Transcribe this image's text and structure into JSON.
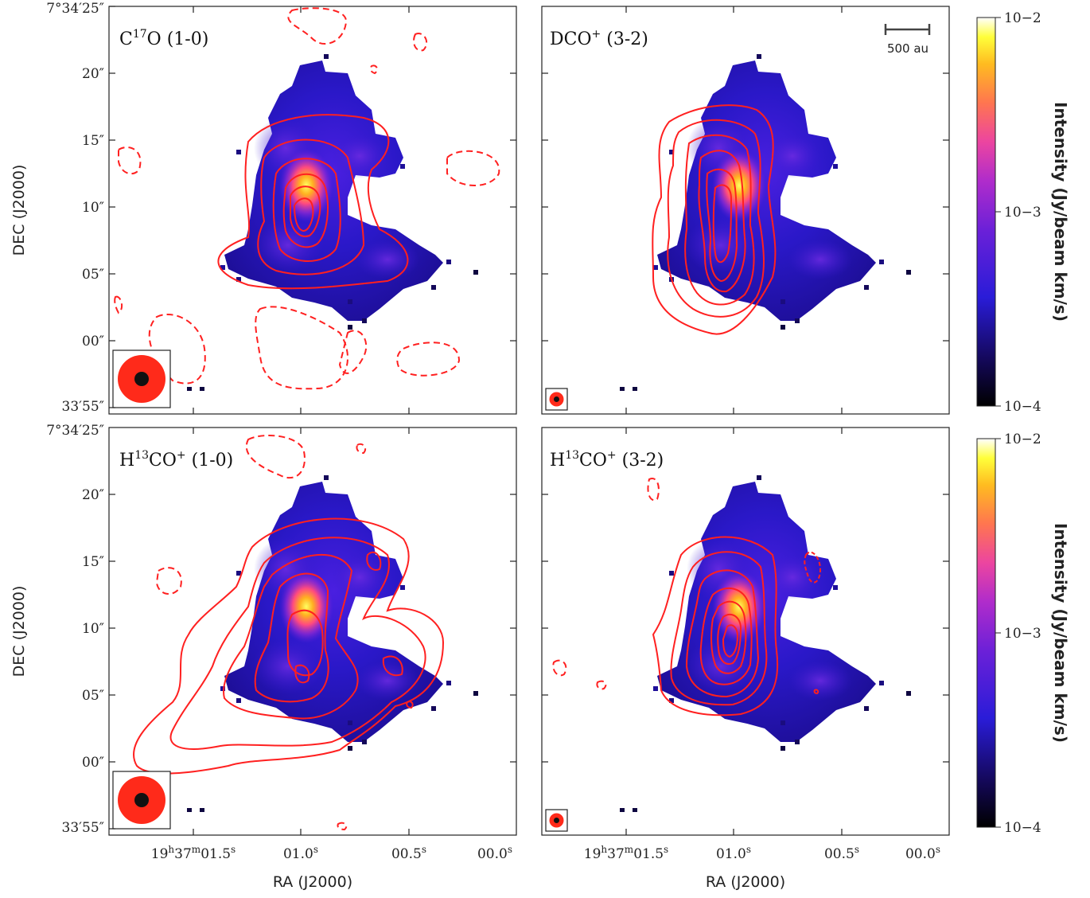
{
  "chart_data": [
    {
      "type": "heatmap",
      "panel": "top-left",
      "title": "C17O (1-0)",
      "title_main": "C",
      "title_sup": "17",
      "title_rest": "O (1-0)",
      "ylabel": "DEC (J2000)",
      "yticks": [
        "7°34′25″",
        "20″",
        "15″",
        "10″",
        "05″",
        "00″",
        "33′55″"
      ],
      "contours": "red solid positive levels, dashed negative levels",
      "beam": "large (red ellipse in lower-left box)"
    },
    {
      "type": "heatmap",
      "panel": "top-right",
      "title": "DCO+ (3-2)",
      "title_main": "DCO",
      "title_sup": "+",
      "title_rest": " (3-2)",
      "scalebar": "500 au",
      "beam": "small"
    },
    {
      "type": "heatmap",
      "panel": "bottom-left",
      "title": "H13CO+ (1-0)",
      "title_main": "H",
      "title_sup": "13",
      "title_mid": "CO",
      "title_sup2": "+",
      "title_rest": " (1-0)",
      "ylabel": "DEC (J2000)",
      "xlabel": "RA (J2000)",
      "yticks": [
        "7°34′25″",
        "20″",
        "15″",
        "10″",
        "05″",
        "00″",
        "33′55″"
      ],
      "xticks": [
        "19h37m01.5s",
        "01.0s",
        "00.5s",
        "00.0s"
      ],
      "beam": "large"
    },
    {
      "type": "heatmap",
      "panel": "bottom-right",
      "title": "H13CO+ (3-2)",
      "title_main": "H",
      "title_sup": "13",
      "title_mid": "CO",
      "title_sup2": "+",
      "title_rest": " (3-2)",
      "xlabel": "RA (J2000)",
      "xticks": [
        "19h37m01.5s",
        "01.0s",
        "00.5s",
        "00.0s"
      ],
      "beam": "small"
    }
  ],
  "colorbar": {
    "label": "Intensity (Jy/beam km/s)",
    "scale": "log",
    "range": [
      0.0001,
      0.01
    ],
    "ticks": [
      "10−2",
      "10−3",
      "10−4"
    ],
    "colormap": [
      "#000000",
      "#1a0a6e",
      "#2b1ad6",
      "#5a1fd8",
      "#a02bd0",
      "#e040a8",
      "#ff6a55",
      "#ffb020",
      "#ffff40",
      "#ffffff"
    ]
  },
  "xtick_parts": {
    "first_main": "19",
    "first_h": "h",
    "first_mid": "37",
    "first_m": "m",
    "first_end": "01.5",
    "s": "s",
    "second": "01.0",
    "third": "00.5",
    "fourth": "00.0"
  },
  "colors": {
    "contour": "#ff2020",
    "frame": "#222222"
  }
}
